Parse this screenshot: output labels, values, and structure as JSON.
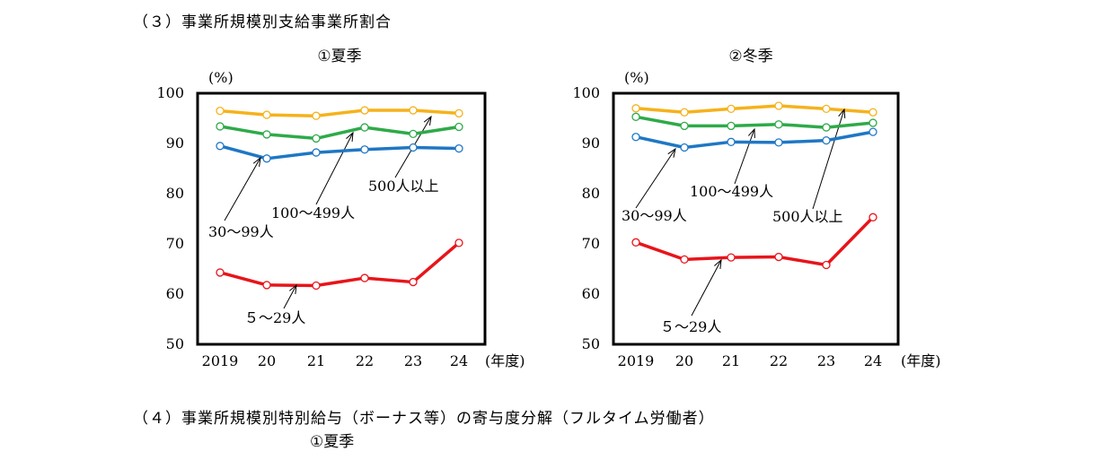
{
  "section3_title": "（３）事業所規模別支給事業所割合",
  "section4_title": "（４）事業所規模別特別給与（ボーナス等）の寄与度分解（フルタイム労働者）",
  "cut_text": "①夏季",
  "colors": {
    "5-29": "#e8141a",
    "30-99": "#1f77c4",
    "100-499": "#2eaa49",
    "500+": "#f5b21b"
  },
  "chart_data": [
    {
      "type": "line",
      "title": "①夏季",
      "ylabel": "(%)",
      "xlabel": "(年度)",
      "ylim": [
        50,
        100
      ],
      "yticks": [
        50,
        60,
        70,
        80,
        90,
        100
      ],
      "categories": [
        "2019",
        "20",
        "21",
        "22",
        "23",
        "24"
      ],
      "series": [
        {
          "name": "500人以上",
          "color_key": "500+",
          "values": [
            96.5,
            95.7,
            95.5,
            96.6,
            96.6,
            96.0
          ]
        },
        {
          "name": "100～499人",
          "color_key": "100-499",
          "values": [
            93.4,
            91.8,
            91.0,
            93.2,
            91.9,
            93.3
          ]
        },
        {
          "name": "30～99人",
          "color_key": "30-99",
          "values": [
            89.5,
            87.0,
            88.2,
            88.8,
            89.2,
            89.0
          ]
        },
        {
          "name": "５～29人",
          "color_key": "5-29",
          "values": [
            64.3,
            61.8,
            61.7,
            63.2,
            62.4,
            70.2
          ]
        }
      ]
    },
    {
      "type": "line",
      "title": "②冬季",
      "ylabel": "(%)",
      "xlabel": "(年度)",
      "ylim": [
        50,
        100
      ],
      "yticks": [
        50,
        60,
        70,
        80,
        90,
        100
      ],
      "categories": [
        "2019",
        "20",
        "21",
        "22",
        "23",
        "24"
      ],
      "series": [
        {
          "name": "500人以上",
          "color_key": "500+",
          "values": [
            97.0,
            96.2,
            96.9,
            97.5,
            96.9,
            96.2
          ]
        },
        {
          "name": "100～499人",
          "color_key": "100-499",
          "values": [
            95.3,
            93.5,
            93.5,
            93.8,
            93.2,
            94.1
          ]
        },
        {
          "name": "30～99人",
          "color_key": "30-99",
          "values": [
            91.3,
            89.2,
            90.3,
            90.2,
            90.6,
            92.3
          ]
        },
        {
          "name": "５～29人",
          "color_key": "5-29",
          "values": [
            70.3,
            66.9,
            67.3,
            67.4,
            65.8,
            75.3
          ]
        }
      ]
    }
  ]
}
